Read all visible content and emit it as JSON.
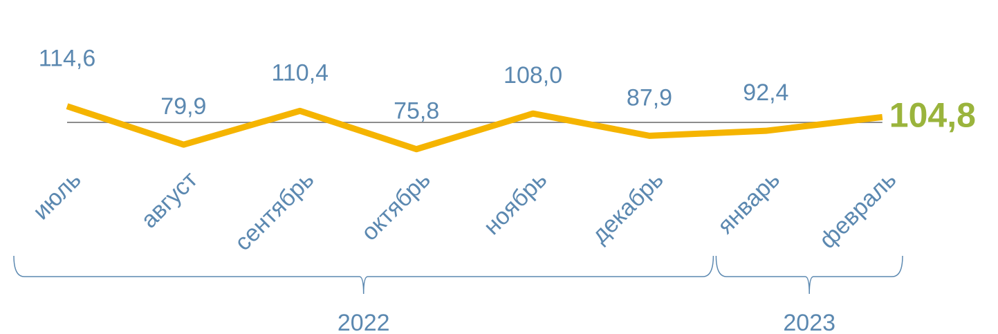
{
  "chart_data": {
    "type": "line",
    "categories": [
      "июль",
      "август",
      "сентябрь",
      "октябрь",
      "ноябрь",
      "декабрь",
      "январь",
      "февраль"
    ],
    "series": [
      {
        "color": "#f5b400",
        "values": [
          114.6,
          79.9,
          110.4,
          75.8,
          108.0,
          87.9,
          92.4,
          104.8
        ],
        "value_labels": [
          "114,6",
          "79,9",
          "110,4",
          "75,8",
          "108,0",
          "87,9",
          "92,4",
          "104,8"
        ]
      }
    ],
    "highlight_color": "#9ab43c",
    "label_color": "#5b88b0",
    "reference_line": 100,
    "ylim": [
      60,
      140
    ],
    "year_groups": [
      {
        "label": "2022",
        "count": 6
      },
      {
        "label": "2023",
        "count": 2
      }
    ]
  }
}
